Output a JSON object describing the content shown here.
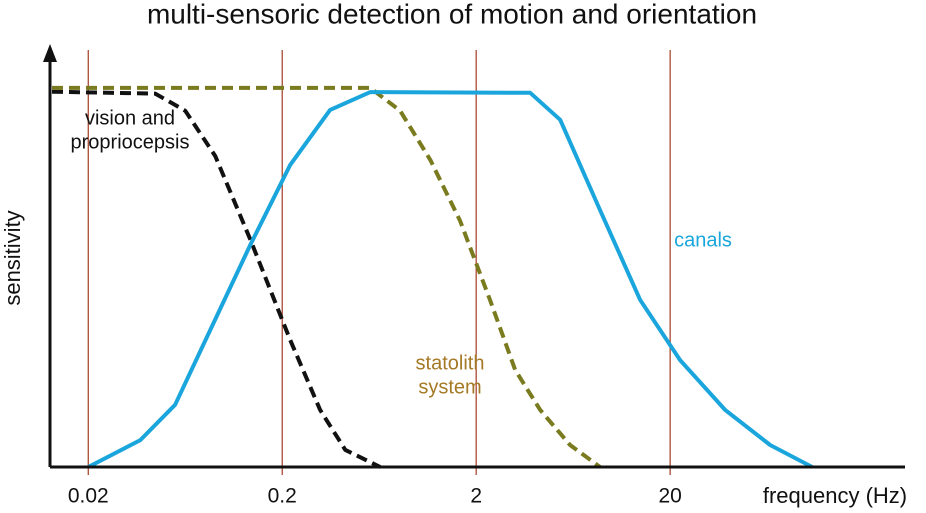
{
  "chart_data": {
    "type": "line",
    "title": "multi-sensoric detection of motion and orientation",
    "x_label": "frequency (Hz)",
    "y_label": "sensitivity",
    "x_scale": "log",
    "xlim": [
      0.0127,
      325
    ],
    "ylim": [
      0,
      1.1
    ],
    "xticks": [
      0.02,
      0.2,
      2,
      20
    ],
    "tick_line_color": "#a23a22",
    "series": [
      {
        "label": [
          "vision and",
          "propriocepsis"
        ],
        "color": "#111111",
        "label_color": "#111111",
        "dashed": true,
        "x": [
          0.013,
          0.0443,
          0.0632,
          0.0904,
          0.137,
          0.22,
          0.314,
          0.423,
          0.64
        ],
        "values": [
          0.99,
          0.985,
          0.94,
          0.82,
          0.6,
          0.335,
          0.15,
          0.045,
          0
        ]
      },
      {
        "label": [
          "statolith",
          "system"
        ],
        "color": "#7a7a1e",
        "label_color": "#a57a26",
        "dashed": true,
        "x": [
          0.013,
          0.569,
          0.811,
          1.16,
          1.65,
          2.36,
          3.18,
          4.28,
          6.1,
          8.7
        ],
        "values": [
          1.0,
          1.0,
          0.94,
          0.81,
          0.65,
          0.44,
          0.256,
          0.15,
          0.058,
          0
        ]
      },
      {
        "label": [
          "canals"
        ],
        "color": "#1aa6dc",
        "label_color": "#1aa6dc",
        "dashed": false,
        "x": [
          0.02,
          0.0371,
          0.0561,
          0.0851,
          0.137,
          0.22,
          0.353,
          0.569,
          3.8,
          5.42,
          8.7,
          14.0,
          22.5,
          38.5,
          65.5,
          108
        ],
        "values": [
          0,
          0.071,
          0.164,
          0.361,
          0.586,
          0.797,
          0.942,
          0.989,
          0.987,
          0.916,
          0.678,
          0.441,
          0.282,
          0.15,
          0.058,
          0
        ]
      }
    ]
  }
}
